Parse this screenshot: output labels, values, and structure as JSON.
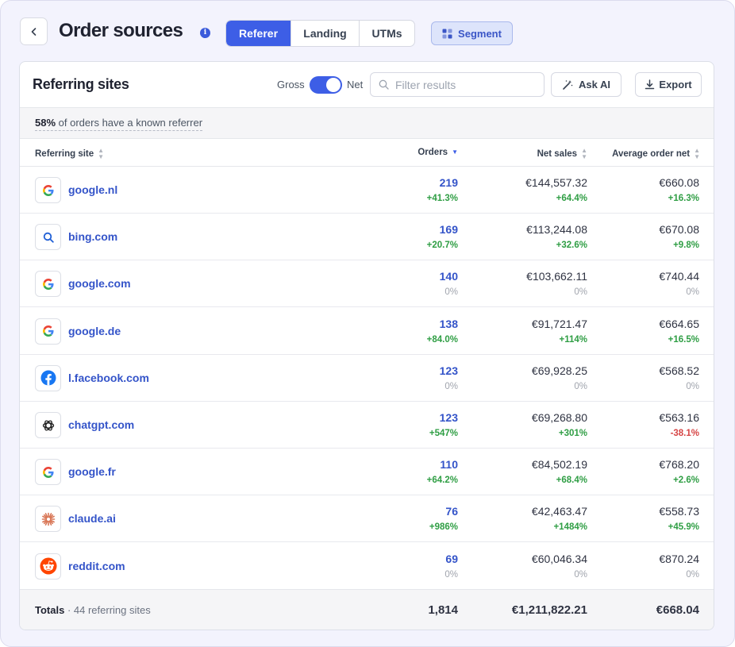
{
  "header": {
    "title": "Order sources",
    "tabs": [
      {
        "label": "Referer",
        "active": true
      },
      {
        "label": "Landing",
        "active": false
      },
      {
        "label": "UTMs",
        "active": false
      }
    ],
    "segment_label": "Segment"
  },
  "card": {
    "title": "Referring sites",
    "toggle": {
      "left_label": "Gross",
      "right_label": "Net",
      "selected": "Net"
    },
    "filter_placeholder": "Filter results",
    "ask_label": "Ask AI",
    "export_label": "Export",
    "banner": {
      "pct": "58%",
      "text": "of orders have a known referrer"
    }
  },
  "table": {
    "columns": [
      "Referring site",
      "Orders",
      "Net sales",
      "Average order net"
    ],
    "sorted_column": "Orders",
    "rows": [
      {
        "site": "google.nl",
        "icon": "google-icon",
        "orders": "219",
        "orders_delta": "+41.3%",
        "net_sales": "€144,557.32",
        "net_sales_delta": "+64.4%",
        "aov": "€660.08",
        "aov_delta": "+16.3%"
      },
      {
        "site": "bing.com",
        "icon": "bing-search-icon",
        "orders": "169",
        "orders_delta": "+20.7%",
        "net_sales": "€113,244.08",
        "net_sales_delta": "+32.6%",
        "aov": "€670.08",
        "aov_delta": "+9.8%"
      },
      {
        "site": "google.com",
        "icon": "google-icon",
        "orders": "140",
        "orders_delta": "0%",
        "net_sales": "€103,662.11",
        "net_sales_delta": "0%",
        "aov": "€740.44",
        "aov_delta": "0%"
      },
      {
        "site": "google.de",
        "icon": "google-icon",
        "orders": "138",
        "orders_delta": "+84.0%",
        "net_sales": "€91,721.47",
        "net_sales_delta": "+114%",
        "aov": "€664.65",
        "aov_delta": "+16.5%"
      },
      {
        "site": "l.facebook.com",
        "icon": "facebook-icon",
        "orders": "123",
        "orders_delta": "0%",
        "net_sales": "€69,928.25",
        "net_sales_delta": "0%",
        "aov": "€568.52",
        "aov_delta": "0%"
      },
      {
        "site": "chatgpt.com",
        "icon": "chatgpt-icon",
        "orders": "123",
        "orders_delta": "+547%",
        "net_sales": "€69,268.80",
        "net_sales_delta": "+301%",
        "aov": "€563.16",
        "aov_delta": "-38.1%"
      },
      {
        "site": "google.fr",
        "icon": "google-icon",
        "orders": "110",
        "orders_delta": "+64.2%",
        "net_sales": "€84,502.19",
        "net_sales_delta": "+68.4%",
        "aov": "€768.20",
        "aov_delta": "+2.6%"
      },
      {
        "site": "claude.ai",
        "icon": "claude-icon",
        "orders": "76",
        "orders_delta": "+986%",
        "net_sales": "€42,463.47",
        "net_sales_delta": "+1484%",
        "aov": "€558.73",
        "aov_delta": "+45.9%"
      },
      {
        "site": "reddit.com",
        "icon": "reddit-icon",
        "orders": "69",
        "orders_delta": "0%",
        "net_sales": "€60,046.34",
        "net_sales_delta": "0%",
        "aov": "€870.24",
        "aov_delta": "0%"
      }
    ],
    "totals": {
      "label": "Totals",
      "sub": "44 referring sites",
      "orders": "1,814",
      "net_sales": "€1,211,822.21",
      "aov": "€668.04"
    }
  },
  "colors": {
    "accent": "#3d5ee6",
    "positive": "#2f9e44",
    "negative": "#d64545",
    "muted": "#a0a4ad"
  }
}
